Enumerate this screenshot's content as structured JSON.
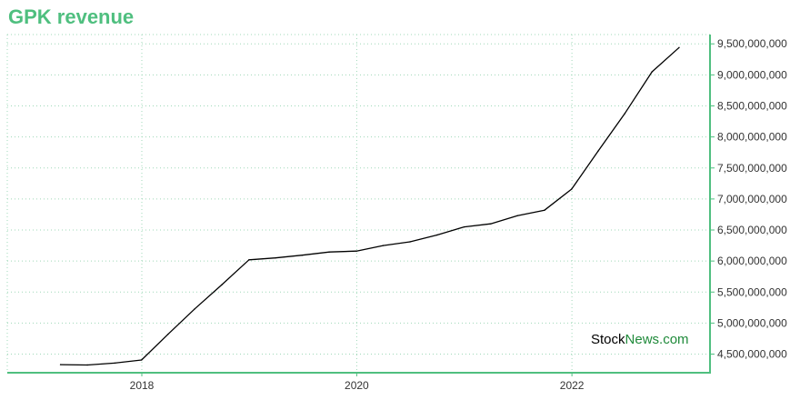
{
  "title": "GPK revenue",
  "watermark": {
    "part1": "Stock",
    "part2": "News",
    "part3": ".com"
  },
  "colors": {
    "accent": "#4fbf7f",
    "line": "#000000",
    "grid": "#9fd8b8",
    "axis": "#4fbf7f"
  },
  "chart_data": {
    "type": "line",
    "title": "GPK revenue",
    "xlabel": "",
    "ylabel": "",
    "x_ticks": [
      "2018",
      "2020",
      "2022"
    ],
    "y_ticks": [
      4500000000,
      5000000000,
      5500000000,
      6000000000,
      6500000000,
      7000000000,
      7500000000,
      8000000000,
      8500000000,
      9000000000,
      9500000000
    ],
    "y_tick_labels": [
      "4,500,000,000",
      "5,000,000,000",
      "5,500,000,000",
      "6,000,000,000",
      "6,500,000,000",
      "7,000,000,000",
      "7,500,000,000",
      "8,000,000,000",
      "8,500,000,000",
      "9,000,000,000",
      "9,500,000,000"
    ],
    "ylim": [
      4200000000,
      9650000000
    ],
    "xlim": [
      "2016-10-01",
      "2023-04-15"
    ],
    "grid": true,
    "y_axis_side": "right",
    "series": [
      {
        "x": [
          "2017-03-31",
          "2017-06-30",
          "2017-09-30",
          "2017-12-31",
          "2018-03-31",
          "2018-06-30",
          "2018-09-30",
          "2018-12-31",
          "2019-03-31",
          "2019-06-30",
          "2019-09-30",
          "2019-12-31",
          "2020-03-31",
          "2020-06-30",
          "2020-09-30",
          "2020-12-31",
          "2021-03-31",
          "2021-06-30",
          "2021-09-30",
          "2021-12-31",
          "2022-03-31",
          "2022-06-30",
          "2022-09-30",
          "2022-12-31"
        ],
        "values": [
          4330000000,
          4325000000,
          4355000000,
          4405000000,
          4820000000,
          5230000000,
          5620000000,
          6020000000,
          6050000000,
          6095000000,
          6145000000,
          6160000000,
          6250000000,
          6310000000,
          6420000000,
          6550000000,
          6600000000,
          6730000000,
          6820000000,
          7160000000,
          7770000000,
          8380000000,
          9050000000,
          9440000000
        ]
      }
    ]
  }
}
